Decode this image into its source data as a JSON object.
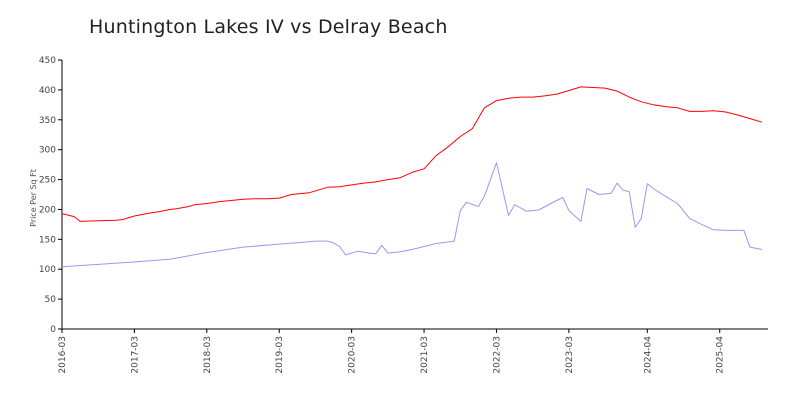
{
  "chart_data": {
    "type": "line",
    "title": "Huntington Lakes IV vs Delray Beach",
    "ylabel": "Price Per Sq Ft",
    "xlabel": "",
    "ylim": [
      0,
      450
    ],
    "yticks": [
      0,
      50,
      100,
      150,
      200,
      250,
      300,
      350,
      400,
      450
    ],
    "xlim": [
      "2016-03",
      "2025-12"
    ],
    "xticks": [
      "2016-03",
      "2017-03",
      "2018-03",
      "2019-03",
      "2020-03",
      "2021-03",
      "2022-03",
      "2023-03",
      "2024-04",
      "2025-04"
    ],
    "grid": false,
    "legend": "none",
    "series": [
      {
        "color": "#ff0000",
        "x": [
          "2016-03",
          "2016-05",
          "2016-06",
          "2016-09",
          "2016-12",
          "2017-01",
          "2017-03",
          "2017-05",
          "2017-07",
          "2017-09",
          "2017-10",
          "2017-12",
          "2018-01",
          "2018-03",
          "2018-05",
          "2018-07",
          "2018-09",
          "2018-11",
          "2019-01",
          "2019-03",
          "2019-05",
          "2019-08",
          "2019-11",
          "2020-01",
          "2020-03",
          "2020-05",
          "2020-07",
          "2020-09",
          "2020-11",
          "2021-01",
          "2021-03",
          "2021-05",
          "2021-07",
          "2021-09",
          "2021-11",
          "2022-01",
          "2022-03",
          "2022-05",
          "2022-07",
          "2022-09",
          "2022-11",
          "2023-01",
          "2023-03",
          "2023-05",
          "2023-07",
          "2023-09",
          "2023-11",
          "2024-01",
          "2024-03",
          "2024-05",
          "2024-07",
          "2024-09",
          "2024-11",
          "2025-01",
          "2025-03",
          "2025-05",
          "2025-07",
          "2025-09",
          "2025-11"
        ],
        "y": [
          193,
          188,
          180,
          181,
          182,
          183,
          189,
          193,
          196,
          200,
          201,
          205,
          208,
          210,
          213,
          215,
          217,
          218,
          218,
          219,
          225,
          228,
          237,
          238,
          241,
          244,
          246,
          250,
          253,
          262,
          268,
          290,
          305,
          322,
          335,
          370,
          382,
          386,
          388,
          388,
          390,
          393,
          399,
          405,
          404,
          403,
          398,
          388,
          380,
          375,
          372,
          370,
          364,
          364,
          365,
          363,
          358,
          352,
          346
        ],
        "y_note": ""
      },
      {
        "color": "#9999ee",
        "x": [
          "2016-03",
          "2016-09",
          "2017-03",
          "2017-09",
          "2018-03",
          "2018-09",
          "2019-03",
          "2019-07",
          "2019-09",
          "2019-11",
          "2019-12",
          "2020-01",
          "2020-02",
          "2020-04",
          "2020-06",
          "2020-07",
          "2020-08",
          "2020-09",
          "2020-11",
          "2021-01",
          "2021-03",
          "2021-05",
          "2021-08",
          "2021-09",
          "2021-10",
          "2021-12",
          "2022-01",
          "2022-03",
          "2022-05",
          "2022-06",
          "2022-08",
          "2022-10",
          "2022-12",
          "2023-02",
          "2023-03",
          "2023-05",
          "2023-06",
          "2023-08",
          "2023-10",
          "2023-11",
          "2023-12",
          "2024-01",
          "2024-02",
          "2024-03",
          "2024-04",
          "2024-05",
          "2024-07",
          "2024-09",
          "2024-11",
          "2025-01",
          "2025-03",
          "2025-05",
          "2025-07",
          "2025-08",
          "2025-09",
          "2025-11"
        ],
        "y": [
          104,
          108,
          112,
          117,
          128,
          137,
          142,
          145,
          147,
          147,
          144,
          138,
          124,
          130,
          127,
          126,
          140,
          127,
          129,
          133,
          138,
          143,
          147,
          198,
          212,
          205,
          222,
          278,
          190,
          208,
          197,
          199,
          210,
          220,
          198,
          180,
          235,
          225,
          227,
          244,
          232,
          230,
          170,
          185,
          243,
          235,
          222,
          210,
          185,
          175,
          166,
          165,
          165,
          165,
          137,
          133
        ]
      }
    ]
  }
}
